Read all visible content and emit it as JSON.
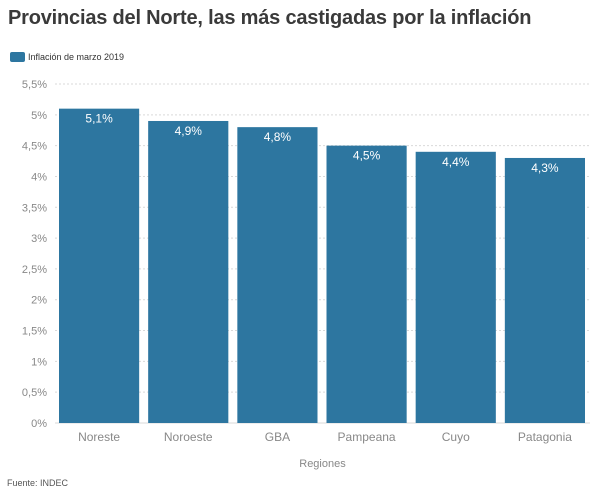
{
  "title": "Provincias del Norte, las más castigadas por la inflación",
  "source": "Fuente: INDEC",
  "colors": {
    "bar": "#2d76a0",
    "grid": "#d9d9d9",
    "axis_text": "#888888",
    "data_label": "#ffffff"
  },
  "chart_data": {
    "type": "bar",
    "title": "Provincias del Norte, las más castigadas por la inflación",
    "xlabel": "Regiones",
    "ylabel": "",
    "categories": [
      "Noreste",
      "Noroeste",
      "GBA",
      "Pampeana",
      "Cuyo",
      "Patagonia"
    ],
    "series": [
      {
        "name": "Inflación de marzo 2019",
        "values": [
          5.1,
          4.9,
          4.8,
          4.5,
          4.4,
          4.3
        ],
        "labels": [
          "5,1%",
          "4,9%",
          "4,8%",
          "4,5%",
          "4,4%",
          "4,3%"
        ]
      }
    ],
    "ylim": [
      0,
      5.5
    ],
    "yticks": [
      0,
      0.5,
      1,
      1.5,
      2,
      2.5,
      3,
      3.5,
      4,
      4.5,
      5,
      5.5
    ],
    "ytick_labels": [
      "0%",
      "0,5%",
      "1%",
      "1,5%",
      "2%",
      "2,5%",
      "3%",
      "3,5%",
      "4%",
      "4,5%",
      "5%",
      "5,5%"
    ],
    "grid": true,
    "legend_position": "top-left"
  }
}
